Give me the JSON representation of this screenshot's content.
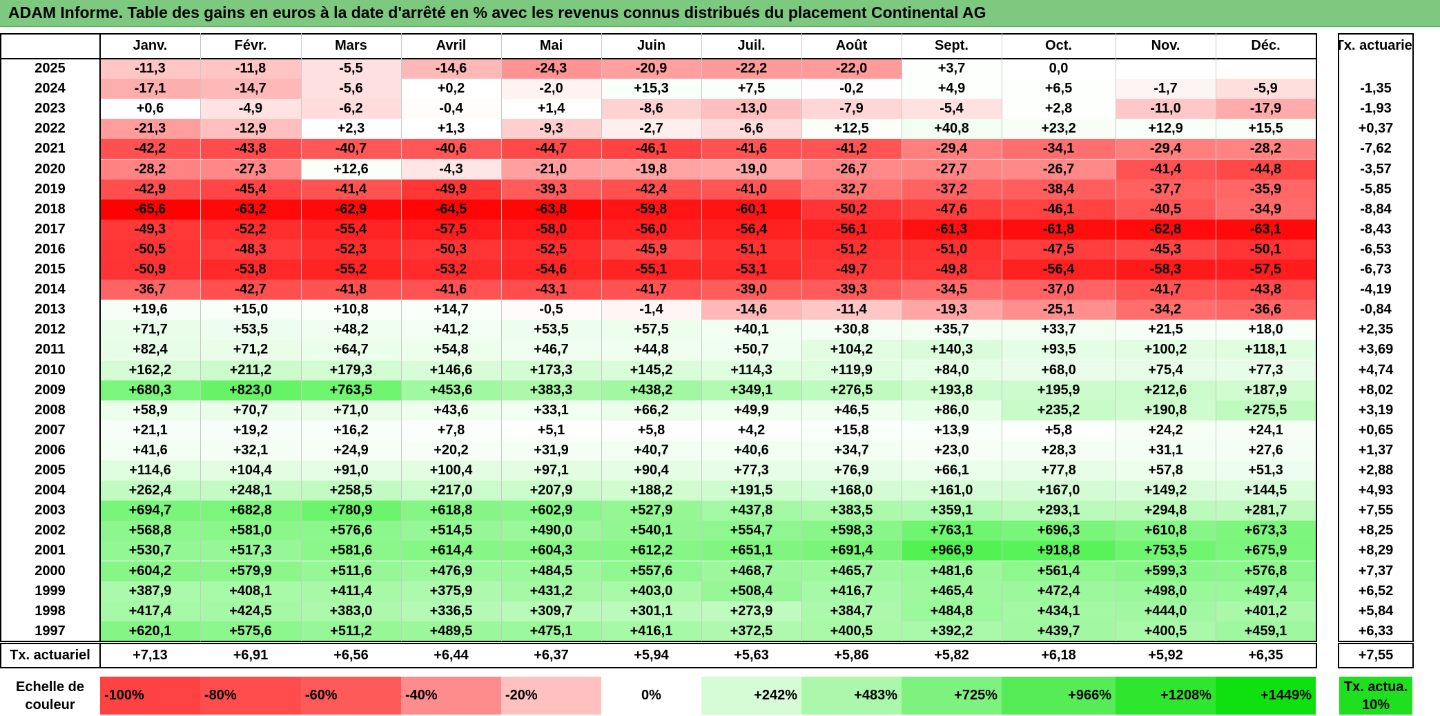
{
  "title": "ADAM Informe. Table des gains en euros à la date d'arrêté en % avec les revenus connus distribués du placement Continental AG",
  "chart_data": {
    "type": "heatmap",
    "columns": [
      "Janv.",
      "Févr.",
      "Mars",
      "Avril",
      "Mai",
      "Juin",
      "Juil.",
      "Août",
      "Sept.",
      "Oct.",
      "Nov.",
      "Déc."
    ],
    "annual_header": "Tx. actuariel",
    "rows": [
      {
        "year": "2025",
        "values": [
          "-11,3",
          "-11,8",
          "-5,5",
          "-14,6",
          "-24,3",
          "-20,9",
          "-22,2",
          "-22,0",
          "+3,7",
          "0,0",
          "",
          ""
        ],
        "annual": ""
      },
      {
        "year": "2024",
        "values": [
          "-17,1",
          "-14,7",
          "-5,6",
          "+0,2",
          "-2,0",
          "+15,3",
          "+7,5",
          "-0,2",
          "+4,9",
          "+6,5",
          "-1,7",
          "-5,9"
        ],
        "annual": "-1,35"
      },
      {
        "year": "2023",
        "values": [
          "+0,6",
          "-4,9",
          "-6,2",
          "-0,4",
          "+1,4",
          "-8,6",
          "-13,0",
          "-7,9",
          "-5,4",
          "+2,8",
          "-11,0",
          "-17,9"
        ],
        "annual": "-1,93"
      },
      {
        "year": "2022",
        "values": [
          "-21,3",
          "-12,9",
          "+2,3",
          "+1,3",
          "-9,3",
          "-2,7",
          "-6,6",
          "+12,5",
          "+40,8",
          "+23,2",
          "+12,9",
          "+15,5"
        ],
        "annual": "+0,37"
      },
      {
        "year": "2021",
        "values": [
          "-42,2",
          "-43,8",
          "-40,7",
          "-40,6",
          "-44,7",
          "-46,1",
          "-41,6",
          "-41,2",
          "-29,4",
          "-34,1",
          "-29,4",
          "-28,2"
        ],
        "annual": "-7,62"
      },
      {
        "year": "2020",
        "values": [
          "-28,2",
          "-27,3",
          "+12,6",
          "-4,3",
          "-21,0",
          "-19,8",
          "-19,0",
          "-26,7",
          "-27,7",
          "-26,7",
          "-41,4",
          "-44,8"
        ],
        "annual": "-3,57"
      },
      {
        "year": "2019",
        "values": [
          "-42,9",
          "-45,4",
          "-41,4",
          "-49,9",
          "-39,3",
          "-42,4",
          "-41,0",
          "-32,7",
          "-37,2",
          "-38,4",
          "-37,7",
          "-35,9"
        ],
        "annual": "-5,85"
      },
      {
        "year": "2018",
        "values": [
          "-65,6",
          "-63,2",
          "-62,9",
          "-64,5",
          "-63,8",
          "-59,8",
          "-60,1",
          "-50,2",
          "-47,6",
          "-46,1",
          "-40,5",
          "-34,9"
        ],
        "annual": "-8,84"
      },
      {
        "year": "2017",
        "values": [
          "-49,3",
          "-52,2",
          "-55,4",
          "-57,5",
          "-58,0",
          "-56,0",
          "-56,4",
          "-56,1",
          "-61,3",
          "-61,8",
          "-62,8",
          "-63,1"
        ],
        "annual": "-8,43"
      },
      {
        "year": "2016",
        "values": [
          "-50,5",
          "-48,3",
          "-52,3",
          "-50,3",
          "-52,5",
          "-45,9",
          "-51,1",
          "-51,2",
          "-51,0",
          "-47,5",
          "-45,3",
          "-50,1"
        ],
        "annual": "-6,53"
      },
      {
        "year": "2015",
        "values": [
          "-50,9",
          "-53,8",
          "-55,2",
          "-53,2",
          "-54,6",
          "-55,1",
          "-53,1",
          "-49,7",
          "-49,8",
          "-56,4",
          "-58,3",
          "-57,5"
        ],
        "annual": "-6,73"
      },
      {
        "year": "2014",
        "values": [
          "-36,7",
          "-42,7",
          "-41,8",
          "-41,6",
          "-43,1",
          "-41,7",
          "-39,0",
          "-39,3",
          "-34,5",
          "-37,0",
          "-41,7",
          "-43,8"
        ],
        "annual": "-4,19"
      },
      {
        "year": "2013",
        "values": [
          "+19,6",
          "+15,0",
          "+10,8",
          "+14,7",
          "-0,5",
          "-1,4",
          "-14,6",
          "-11,4",
          "-19,3",
          "-25,1",
          "-34,2",
          "-36,6"
        ],
        "annual": "-0,84"
      },
      {
        "year": "2012",
        "values": [
          "+71,7",
          "+53,5",
          "+48,2",
          "+41,2",
          "+53,5",
          "+57,5",
          "+40,1",
          "+30,8",
          "+35,7",
          "+33,7",
          "+21,5",
          "+18,0"
        ],
        "annual": "+2,35"
      },
      {
        "year": "2011",
        "values": [
          "+82,4",
          "+71,2",
          "+64,7",
          "+54,8",
          "+46,7",
          "+44,8",
          "+50,7",
          "+104,2",
          "+140,3",
          "+93,5",
          "+100,2",
          "+118,1"
        ],
        "annual": "+3,69"
      },
      {
        "year": "2010",
        "values": [
          "+162,2",
          "+211,2",
          "+179,3",
          "+146,6",
          "+173,3",
          "+145,2",
          "+114,3",
          "+119,9",
          "+84,0",
          "+68,0",
          "+75,4",
          "+77,3"
        ],
        "annual": "+4,74"
      },
      {
        "year": "2009",
        "values": [
          "+680,3",
          "+823,0",
          "+763,5",
          "+453,6",
          "+383,3",
          "+438,2",
          "+349,1",
          "+276,5",
          "+193,8",
          "+195,9",
          "+212,6",
          "+187,9"
        ],
        "annual": "+8,02"
      },
      {
        "year": "2008",
        "values": [
          "+58,9",
          "+70,7",
          "+71,0",
          "+43,6",
          "+33,1",
          "+66,2",
          "+49,9",
          "+46,5",
          "+86,0",
          "+235,2",
          "+190,8",
          "+275,5"
        ],
        "annual": "+3,19"
      },
      {
        "year": "2007",
        "values": [
          "+21,1",
          "+19,2",
          "+16,2",
          "+7,8",
          "+5,1",
          "+5,8",
          "+4,2",
          "+15,8",
          "+13,9",
          "+5,8",
          "+24,2",
          "+24,1"
        ],
        "annual": "+0,65"
      },
      {
        "year": "2006",
        "values": [
          "+41,6",
          "+32,1",
          "+24,9",
          "+20,2",
          "+31,9",
          "+40,7",
          "+40,6",
          "+34,7",
          "+23,0",
          "+28,3",
          "+31,1",
          "+27,6"
        ],
        "annual": "+1,37"
      },
      {
        "year": "2005",
        "values": [
          "+114,6",
          "+104,4",
          "+91,0",
          "+100,4",
          "+97,1",
          "+90,4",
          "+77,3",
          "+76,9",
          "+66,1",
          "+77,8",
          "+57,8",
          "+51,3"
        ],
        "annual": "+2,88"
      },
      {
        "year": "2004",
        "values": [
          "+262,4",
          "+248,1",
          "+258,5",
          "+217,0",
          "+207,9",
          "+188,2",
          "+191,5",
          "+168,0",
          "+161,0",
          "+167,0",
          "+149,2",
          "+144,5"
        ],
        "annual": "+4,93"
      },
      {
        "year": "2003",
        "values": [
          "+694,7",
          "+682,8",
          "+780,9",
          "+618,8",
          "+602,9",
          "+527,9",
          "+437,8",
          "+383,5",
          "+359,1",
          "+293,1",
          "+294,8",
          "+281,7"
        ],
        "annual": "+7,55"
      },
      {
        "year": "2002",
        "values": [
          "+568,8",
          "+581,0",
          "+576,6",
          "+514,5",
          "+490,0",
          "+540,1",
          "+554,7",
          "+598,3",
          "+763,1",
          "+696,3",
          "+610,8",
          "+673,3"
        ],
        "annual": "+8,25"
      },
      {
        "year": "2001",
        "values": [
          "+530,7",
          "+517,3",
          "+581,6",
          "+614,4",
          "+604,3",
          "+612,2",
          "+651,1",
          "+691,4",
          "+966,9",
          "+918,8",
          "+753,5",
          "+675,9"
        ],
        "annual": "+8,29"
      },
      {
        "year": "2000",
        "values": [
          "+604,2",
          "+579,9",
          "+511,6",
          "+476,9",
          "+484,5",
          "+557,6",
          "+468,7",
          "+465,7",
          "+481,6",
          "+561,4",
          "+599,3",
          "+576,8"
        ],
        "annual": "+7,37"
      },
      {
        "year": "1999",
        "values": [
          "+387,9",
          "+408,1",
          "+411,4",
          "+375,9",
          "+431,2",
          "+403,0",
          "+508,4",
          "+416,7",
          "+465,4",
          "+472,4",
          "+498,0",
          "+497,4"
        ],
        "annual": "+6,52"
      },
      {
        "year": "1998",
        "values": [
          "+417,4",
          "+424,5",
          "+383,0",
          "+336,5",
          "+309,7",
          "+301,1",
          "+273,9",
          "+384,7",
          "+484,8",
          "+434,1",
          "+444,0",
          "+401,2"
        ],
        "annual": "+5,84"
      },
      {
        "year": "1997",
        "values": [
          "+620,1",
          "+575,6",
          "+511,2",
          "+489,5",
          "+475,1",
          "+416,1",
          "+372,5",
          "+400,5",
          "+392,2",
          "+439,7",
          "+400,5",
          "+459,1"
        ],
        "annual": "+6,33"
      }
    ],
    "summary_row": {
      "label": "Tx. actuariel",
      "values": [
        "+7,13",
        "+6,91",
        "+6,56",
        "+6,44",
        "+6,37",
        "+5,94",
        "+5,63",
        "+5,86",
        "+5,82",
        "+6,18",
        "+5,92",
        "+6,35"
      ],
      "annual": "+7,55"
    },
    "legend": {
      "label": "Echelle de couleur",
      "steps": [
        {
          "text": "-100%",
          "color": "#ff4242",
          "align": "left"
        },
        {
          "text": "-80%",
          "color": "#ff4d4d",
          "align": "left"
        },
        {
          "text": "-60%",
          "color": "#ff5a5a",
          "align": "left"
        },
        {
          "text": "-40%",
          "color": "#ff8c8c",
          "align": "left"
        },
        {
          "text": "-20%",
          "color": "#ffc0c0",
          "align": "left"
        },
        {
          "text": "0%",
          "color": "#ffffff",
          "align": "center"
        },
        {
          "text": "+242%",
          "color": "#d6fcd6",
          "align": "right"
        },
        {
          "text": "+483%",
          "color": "#abf7ab",
          "align": "right"
        },
        {
          "text": "+725%",
          "color": "#7ef27e",
          "align": "right"
        },
        {
          "text": "+966%",
          "color": "#55ec55",
          "align": "right"
        },
        {
          "text": "+1208%",
          "color": "#2fe62f",
          "align": "right"
        },
        {
          "text": "+1449%",
          "color": "#0fe00f",
          "align": "right"
        }
      ],
      "annual_label": "Tx. actua. 10%",
      "annual_color": "#1ee01e"
    }
  }
}
